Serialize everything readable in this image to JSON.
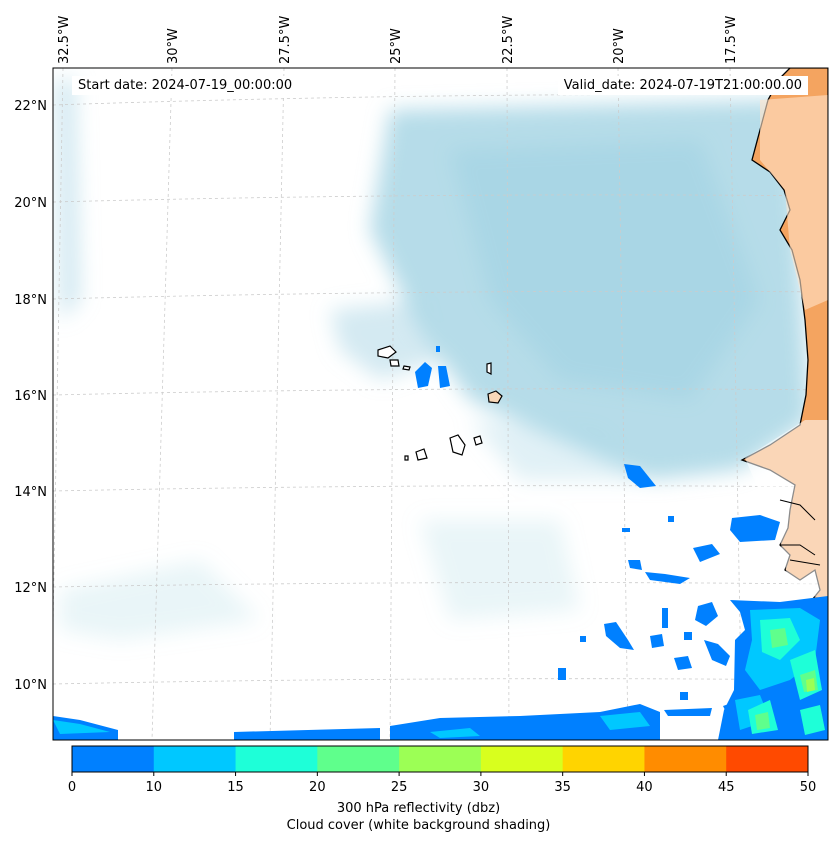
{
  "map": {
    "lon_labels": [
      "32.5°W",
      "30°W",
      "27.5°W",
      "25°W",
      "22.5°W",
      "20°W",
      "17.5°W"
    ],
    "lat_labels": [
      "22°N",
      "20°N",
      "18°N",
      "16°N",
      "14°N",
      "12°N",
      "10°N"
    ],
    "start_date": "Start date: 2024-07-19_00:00:00",
    "valid_date": "Valid_date: 2024-07-19T21:00:00.00"
  },
  "colorbar": {
    "ticks": [
      "0",
      "10",
      "15",
      "20",
      "25",
      "30",
      "35",
      "40",
      "45",
      "50"
    ],
    "colors": [
      "#0080ff",
      "#00c8ff",
      "#1effd8",
      "#5fff8c",
      "#9cff55",
      "#d8ff1e",
      "#ffd400",
      "#ff8c00",
      "#ff4a00"
    ],
    "label_line1": "300 hPa reflectivity (dbz)",
    "label_line2": "Cloud cover (white background shading)"
  },
  "colors": {
    "land": "#f4a460",
    "cloud": "#a9d6e5",
    "frame": "#000000"
  }
}
